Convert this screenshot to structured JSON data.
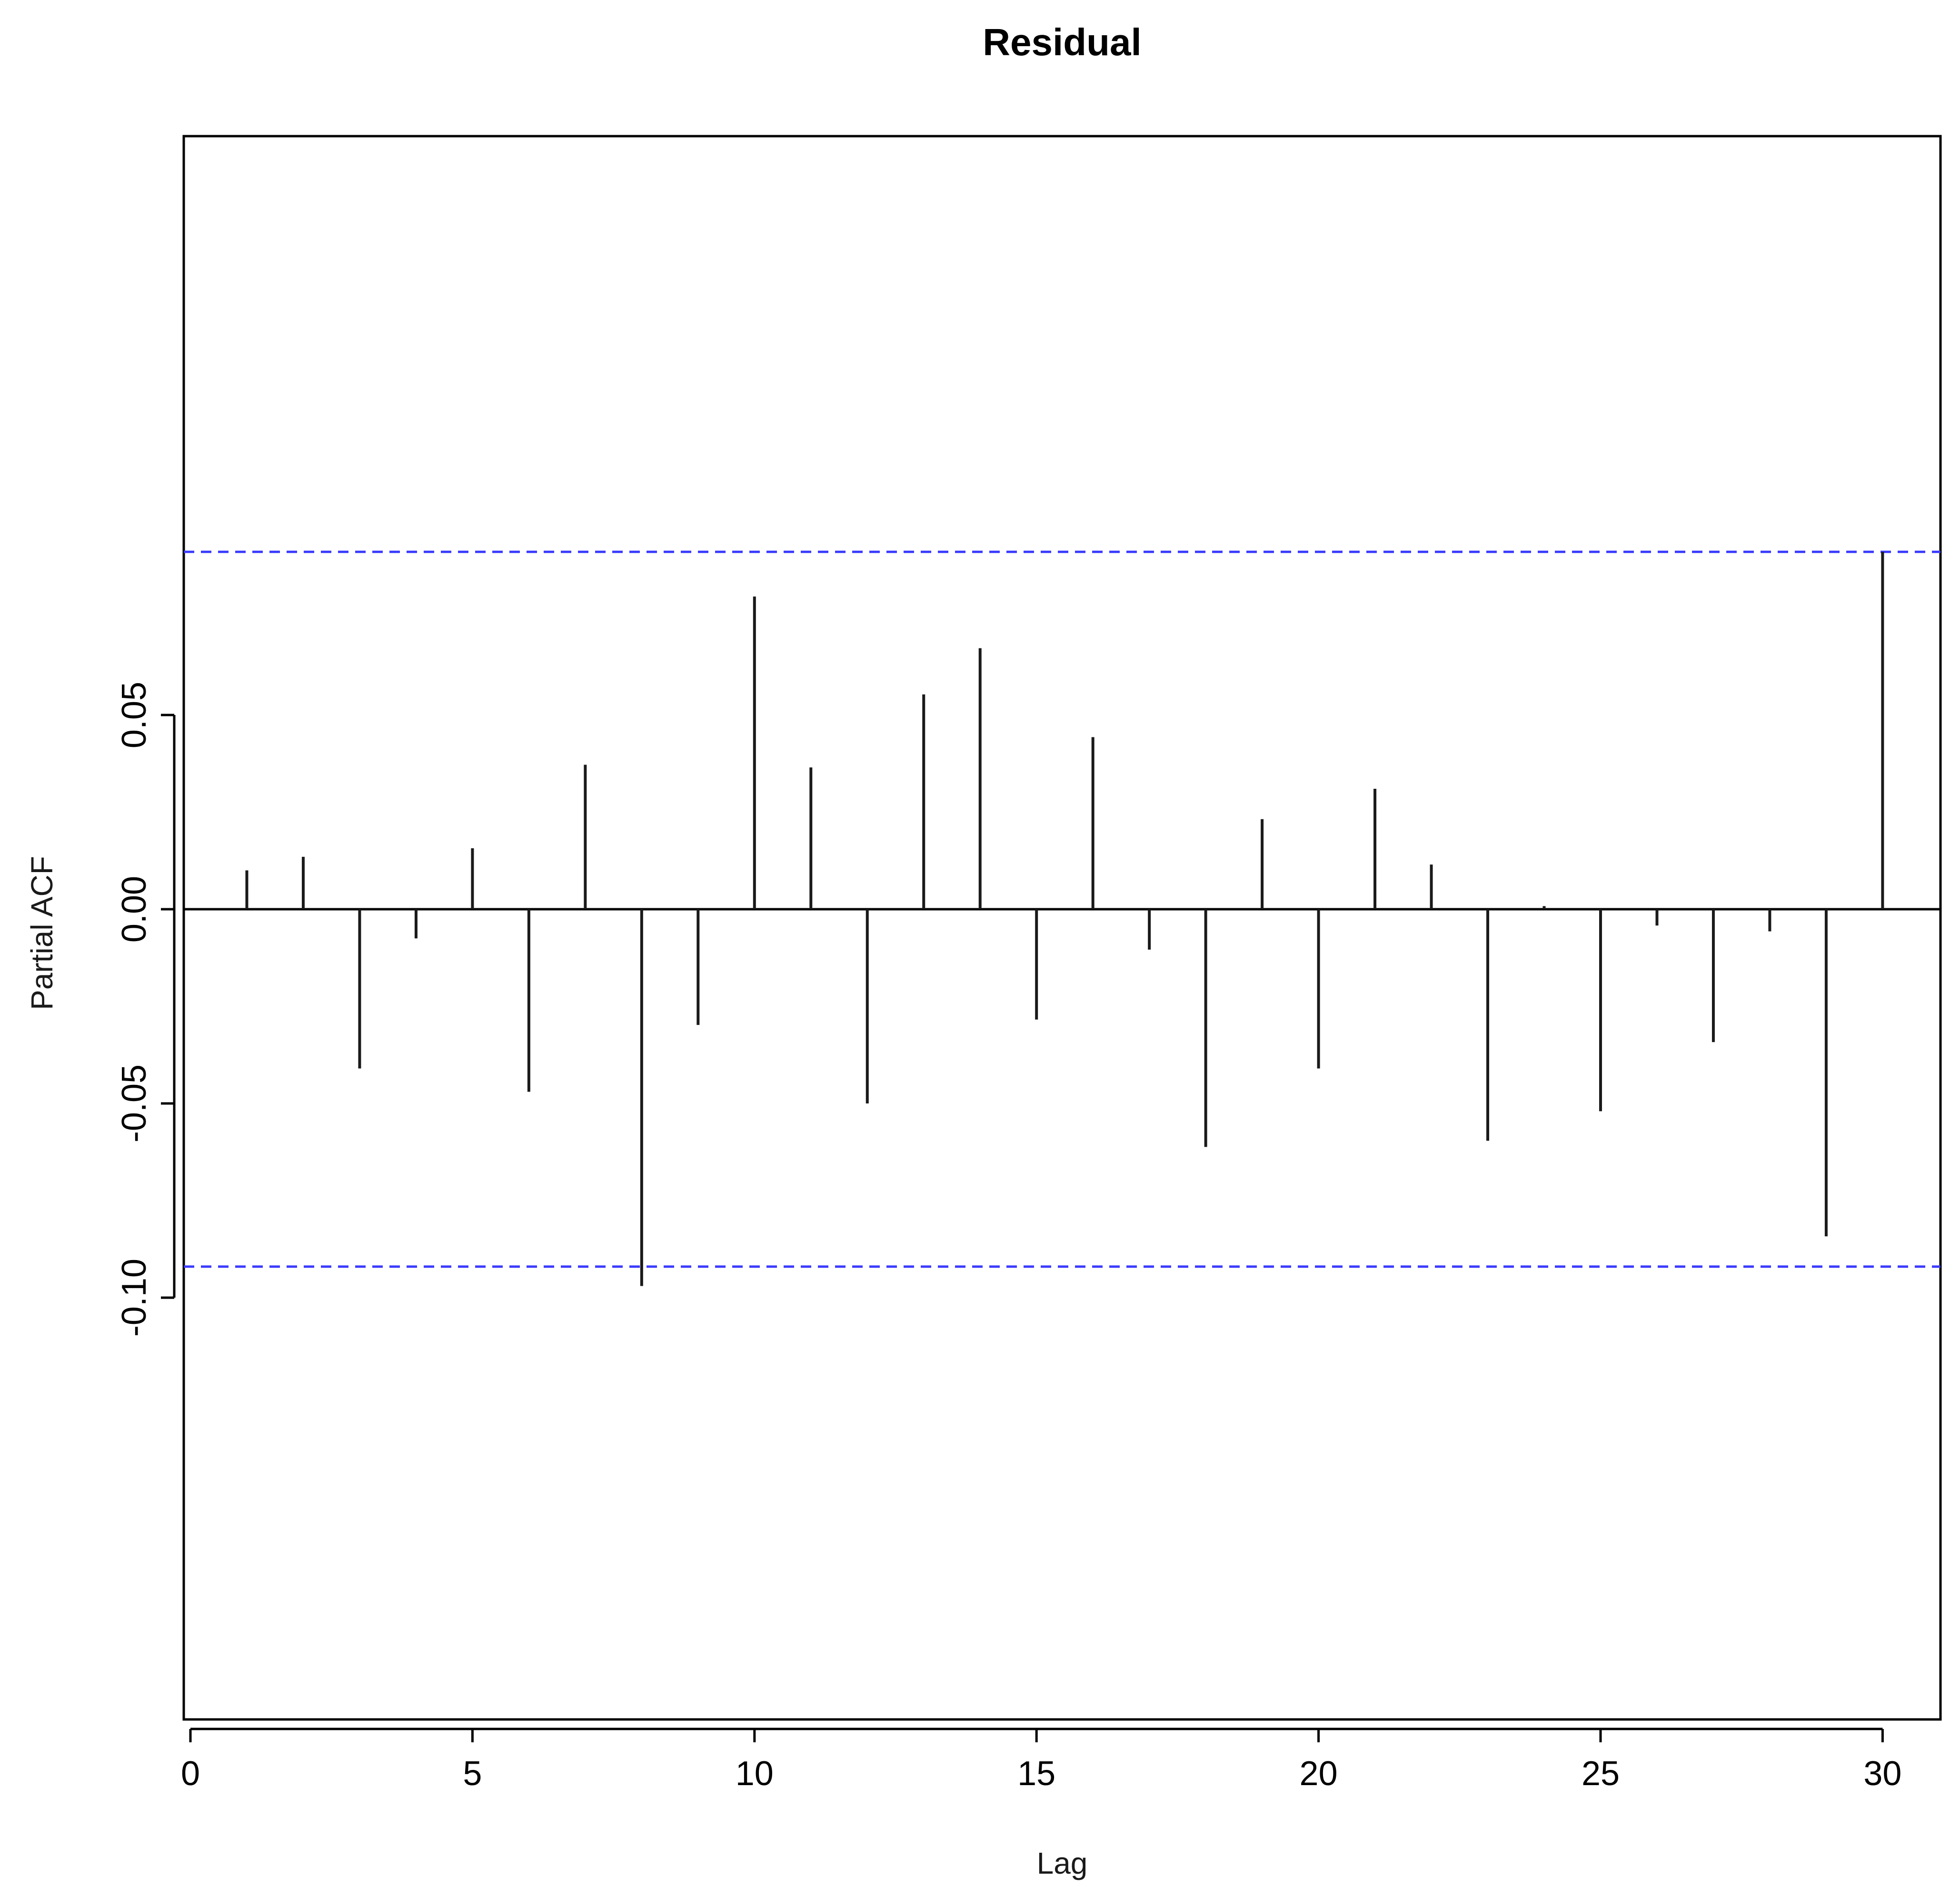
{
  "chart_data": {
    "type": "bar",
    "title": "Residual",
    "xlabel": "Lag",
    "ylabel": "Partial ACF",
    "xlim": [
      0,
      31
    ],
    "ylim": [
      -0.105,
      0.1
    ],
    "x": [
      1,
      2,
      3,
      4,
      5,
      6,
      7,
      8,
      9,
      10,
      11,
      12,
      13,
      14,
      15,
      16,
      17,
      18,
      19,
      20,
      21,
      22,
      23,
      24,
      25,
      26,
      27,
      28,
      29,
      30
    ],
    "values": [
      0.01,
      0.0135,
      -0.041,
      -0.0075,
      0.0157,
      -0.047,
      0.0372,
      -0.097,
      -0.0298,
      0.0805,
      0.0365,
      -0.05,
      0.0553,
      0.0672,
      -0.0284,
      0.0443,
      -0.0104,
      -0.0612,
      0.0232,
      -0.041,
      0.031,
      0.0115,
      -0.0596,
      0.0008,
      -0.052,
      -0.0042,
      -0.0342,
      -0.0057,
      -0.0842,
      0.092
    ],
    "confidence_bounds": [
      0.092,
      -0.092
    ],
    "confidence_color": "#3b3bff",
    "xticks": [
      "0",
      "5",
      "10",
      "15",
      "20",
      "25",
      "30"
    ],
    "yticks": [
      "-0.10",
      "-0.05",
      "0.00",
      "0.05"
    ],
    "grid": false,
    "legend": "none"
  }
}
